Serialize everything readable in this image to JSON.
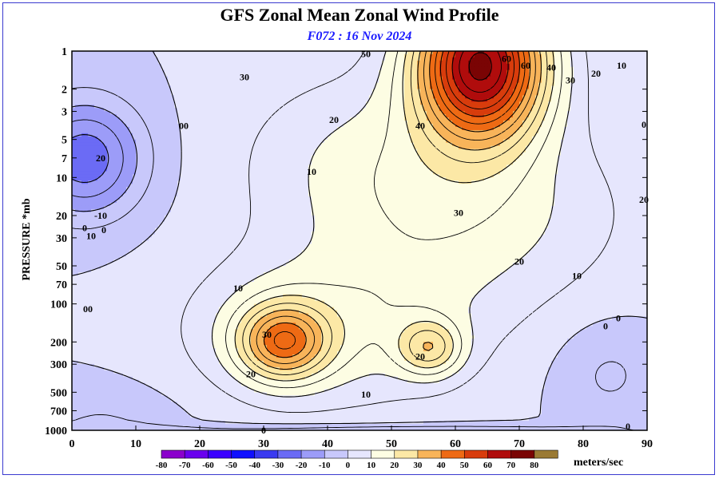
{
  "chart_data": {
    "type": "contour",
    "title": "GFS Zonal Mean Zonal Wind Profile",
    "subtitle": "F072 : 16 Nov 2024",
    "xlabel": "",
    "ylabel": "PRESSURE *mb",
    "x_ticks": [
      0,
      10,
      20,
      30,
      40,
      50,
      60,
      70,
      80,
      90
    ],
    "xlim": [
      0,
      90
    ],
    "y_ticks": [
      1,
      2,
      3,
      5,
      7,
      10,
      20,
      30,
      50,
      70,
      100,
      200,
      300,
      500,
      700,
      1000
    ],
    "ylim": [
      1000,
      1
    ],
    "y_scale": "log",
    "contour_interval": 10,
    "units": "meters/sec",
    "colorbar_levels": [
      -80,
      -70,
      -60,
      -50,
      -40,
      -30,
      -20,
      -10,
      0,
      10,
      20,
      30,
      40,
      50,
      60,
      70,
      80
    ],
    "colorbar_colors": [
      "#8b00cc",
      "#6a00ee",
      "#3b00ff",
      "#1010ff",
      "#3a3af0",
      "#6b6bf5",
      "#9c9cf8",
      "#c8c8fb",
      "#e6e6fd",
      "#fdfde3",
      "#fce8a6",
      "#f8b45a",
      "#ee6a14",
      "#d83c0c",
      "#b00c0c",
      "#7a0404",
      "#9a7a34"
    ],
    "contour_labels": [
      {
        "text": "50",
        "lat": 46,
        "p": 1.05
      },
      {
        "text": "30",
        "lat": 27,
        "p": 1.6
      },
      {
        "text": "60",
        "lat": 68,
        "p": 1.15
      },
      {
        "text": "60",
        "lat": 71,
        "p": 1.3
      },
      {
        "text": "40",
        "lat": 75,
        "p": 1.35
      },
      {
        "text": "30",
        "lat": 78,
        "p": 1.7
      },
      {
        "text": "20",
        "lat": 82,
        "p": 1.5
      },
      {
        "text": "10",
        "lat": 86,
        "p": 1.3
      },
      {
        "text": "00",
        "lat": 17.5,
        "p": 3.9
      },
      {
        "text": "20",
        "lat": 41,
        "p": 3.5
      },
      {
        "text": "40",
        "lat": 54.5,
        "p": 3.9
      },
      {
        "text": "0",
        "lat": 89.5,
        "p": 3.8
      },
      {
        "text": "20",
        "lat": 4.5,
        "p": 7.0
      },
      {
        "text": "10",
        "lat": 37.5,
        "p": 9.0
      },
      {
        "text": "20",
        "lat": 89.5,
        "p": 15
      },
      {
        "text": "-10",
        "lat": 4.5,
        "p": 20
      },
      {
        "text": "30",
        "lat": 60.5,
        "p": 19
      },
      {
        "text": "0",
        "lat": 2,
        "p": 25
      },
      {
        "text": "0",
        "lat": 5,
        "p": 26
      },
      {
        "text": "10",
        "lat": 3,
        "p": 29
      },
      {
        "text": "20",
        "lat": 70,
        "p": 46
      },
      {
        "text": "10",
        "lat": 79,
        "p": 60
      },
      {
        "text": "10",
        "lat": 26,
        "p": 75
      },
      {
        "text": "00",
        "lat": 2.5,
        "p": 110
      },
      {
        "text": "0",
        "lat": 85.5,
        "p": 130
      },
      {
        "text": "0",
        "lat": 83.5,
        "p": 150
      },
      {
        "text": "30",
        "lat": 30.5,
        "p": 175
      },
      {
        "text": "20",
        "lat": 54.5,
        "p": 260
      },
      {
        "text": "20",
        "lat": 28,
        "p": 360
      },
      {
        "text": "10",
        "lat": 46,
        "p": 520
      },
      {
        "text": "0",
        "lat": 30,
        "p": 1000
      },
      {
        "text": "0",
        "lat": 87,
        "p": 930
      }
    ]
  }
}
